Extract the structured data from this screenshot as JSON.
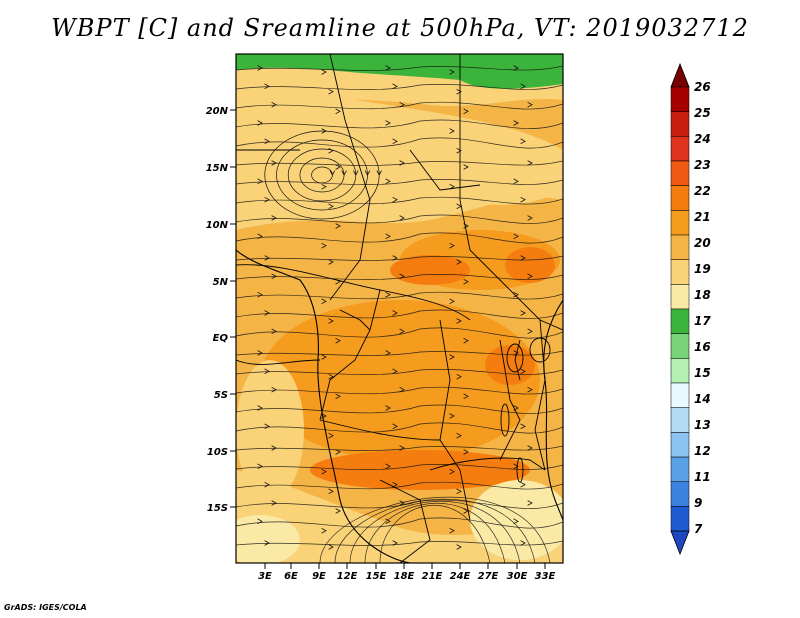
{
  "title": "WBPT [C] and Sreamline at 500hPa, VT: 2019032712",
  "footer": "GrADS: IGES/COLA",
  "map": {
    "lat_labels": [
      "20N",
      "15N",
      "10N",
      "5N",
      "EQ",
      "5S",
      "10S",
      "15S"
    ],
    "lon_labels": [
      "3E",
      "6E",
      "9E",
      "12E",
      "15E",
      "18E",
      "21E",
      "24E",
      "27E",
      "30E",
      "33E"
    ]
  },
  "colorbar": {
    "labels": [
      "26",
      "25",
      "24",
      "23",
      "22",
      "21",
      "20",
      "19",
      "18",
      "17",
      "16",
      "15",
      "14",
      "13",
      "12",
      "11",
      "9",
      "7"
    ],
    "colors": [
      "#a50000",
      "#c81e0f",
      "#e1321e",
      "#f05a14",
      "#f57d0f",
      "#f59b1e",
      "#f5b446",
      "#fad278",
      "#fbeaa5",
      "#3cb43c",
      "#78d278",
      "#b4f0b4",
      "#e6faff",
      "#b4dcf5",
      "#8cc3f0",
      "#5aa0e6",
      "#3c82e1",
      "#1e5ad2"
    ],
    "top_arrow_color": "#780000",
    "bottom_arrow_color": "#1e46be"
  },
  "field_colors": {
    "cool": "#fbeaa5",
    "mild": "#fad278",
    "warm": "#f5b446",
    "hot": "#f59b1e",
    "hotter": "#f57d0f",
    "green": "#3cb43c",
    "green_light": "#78d278"
  }
}
